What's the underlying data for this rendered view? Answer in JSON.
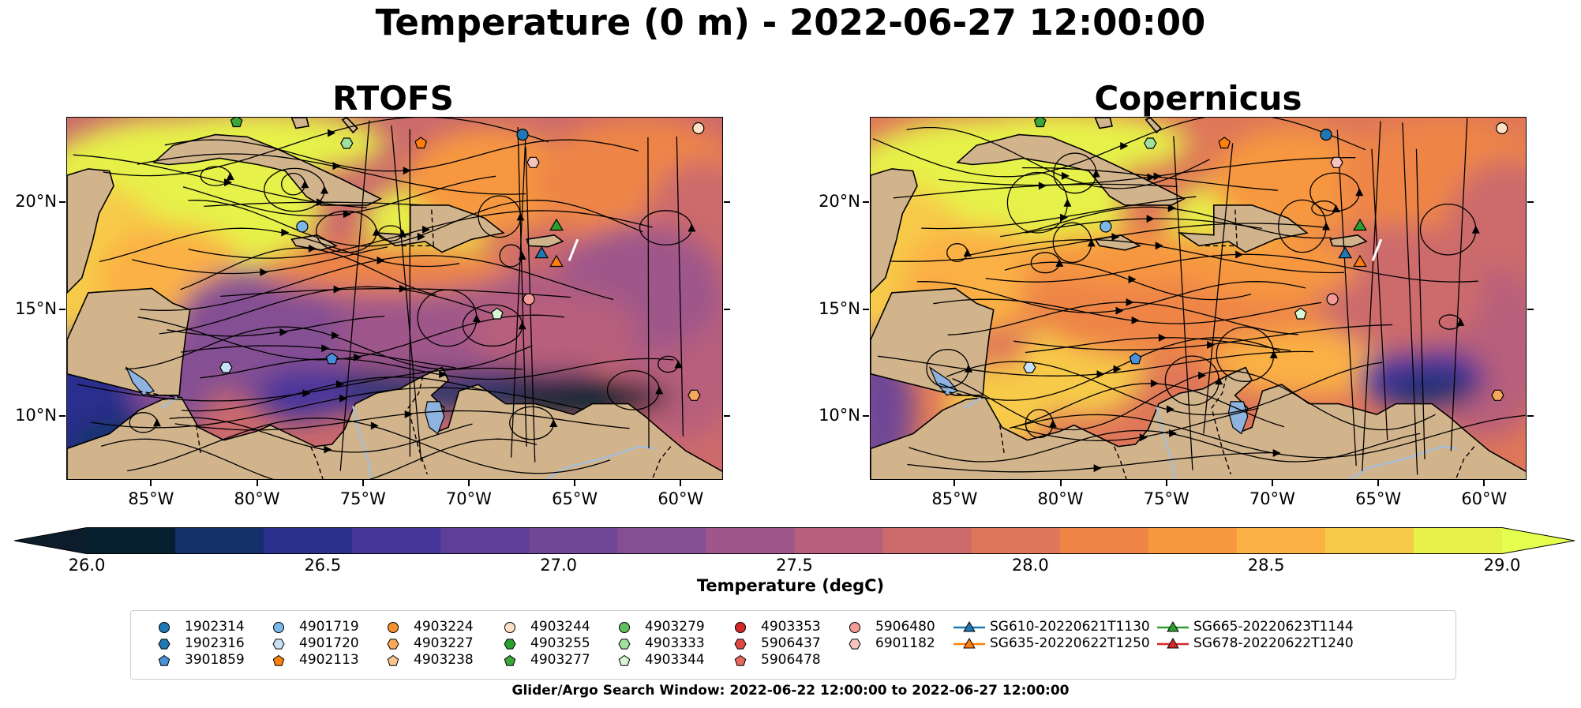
{
  "figure": {
    "title": "Temperature (0 m) - 2022-06-27 12:00:00",
    "footer": "Glider/Argo Search Window: 2022-06-22 12:00:00 to 2022-06-27 12:00:00",
    "colors": {
      "land": "#d2b48c",
      "lake": "#8fb3e0",
      "river": "#a7bcd4",
      "border": "#000000"
    }
  },
  "panels": [
    {
      "title": "RTOFS"
    },
    {
      "title": "Copernicus"
    }
  ],
  "axes": {
    "x_ticks": [
      "85°W",
      "80°W",
      "75°W",
      "70°W",
      "65°W",
      "60°W"
    ],
    "y_ticks": [
      "20°N",
      "15°N",
      "10°N"
    ]
  },
  "chart_data": {
    "type": "heatmap",
    "projection": "map",
    "lon_range": [
      -89,
      -58
    ],
    "lat_range": [
      7,
      24
    ],
    "x_ticks_values": [
      -85,
      -80,
      -75,
      -70,
      -65,
      -60
    ],
    "y_ticks_values": [
      20,
      15,
      10
    ],
    "colorbar": {
      "label": "Temperature (degC)",
      "ticks": [
        26.0,
        26.5,
        27.0,
        27.5,
        28.0,
        28.5,
        29.0
      ],
      "tick_labels": [
        "26.0",
        "26.5",
        "27.0",
        "27.5",
        "28.0",
        "28.5",
        "29.0"
      ],
      "range": [
        26.0,
        29.0
      ],
      "extend": "both",
      "colors": [
        "#06202f",
        "#13306a",
        "#2b2f8e",
        "#47369a",
        "#5d3f99",
        "#6f4796",
        "#854f93",
        "#9f568a",
        "#b75f7c",
        "#cc6a6c",
        "#de7659",
        "#ee8546",
        "#f7983f",
        "#fbb144",
        "#f7ca4a",
        "#e6f24a"
      ],
      "min_color": "#0d1c2a",
      "max_color": "#e4ff4d"
    },
    "observations": [
      {
        "id": "1902314",
        "marker": "circle",
        "color": "#1f77b4",
        "lon": -67.5,
        "lat": 23.2
      },
      {
        "id": "1902316",
        "marker": "hexagon",
        "color": "#1f77b4"
      },
      {
        "id": "3901859",
        "marker": "pentagon",
        "color": "#4a90d9",
        "lon": -76.5,
        "lat": 12.7
      },
      {
        "id": "4901719",
        "marker": "circle",
        "color": "#7ab8e8",
        "lon": -77.9,
        "lat": 18.9
      },
      {
        "id": "4901720",
        "marker": "hexagon",
        "color": "#c6e2f7",
        "lon": -81.5,
        "lat": 12.3
      },
      {
        "id": "4902113",
        "marker": "pentagon",
        "color": "#ff7f0e",
        "lon": -72.3,
        "lat": 22.8
      },
      {
        "id": "4903224",
        "marker": "circle",
        "color": "#f6922e"
      },
      {
        "id": "4903227",
        "marker": "hexagon",
        "color": "#f8a85a",
        "lon": -59.4,
        "lat": 11.0
      },
      {
        "id": "4903238",
        "marker": "pentagon",
        "color": "#fbc58b"
      },
      {
        "id": "4903244",
        "marker": "circle",
        "color": "#fde0c5",
        "lon": -59.2,
        "lat": 23.5
      },
      {
        "id": "4903255",
        "marker": "hexagon",
        "color": "#2ca02c"
      },
      {
        "id": "4903277",
        "marker": "pentagon",
        "color": "#3aa63a",
        "lon": -81.0,
        "lat": 23.8
      },
      {
        "id": "4903279",
        "marker": "circle",
        "color": "#5fc05f"
      },
      {
        "id": "4903333",
        "marker": "hexagon",
        "color": "#9ee29e",
        "lon": -75.8,
        "lat": 22.8
      },
      {
        "id": "4903344",
        "marker": "pentagon",
        "color": "#d7f6d2",
        "lon": -68.7,
        "lat": 14.8
      },
      {
        "id": "4903353",
        "marker": "circle",
        "color": "#d62728"
      },
      {
        "id": "5906437",
        "marker": "hexagon",
        "color": "#e0483f"
      },
      {
        "id": "5906478",
        "marker": "pentagon",
        "color": "#e8685f"
      },
      {
        "id": "5906480",
        "marker": "circle",
        "color": "#f29a95",
        "lon": -67.2,
        "lat": 15.5
      },
      {
        "id": "6901182",
        "marker": "hexagon",
        "color": "#f7c3c0",
        "lon": -67.0,
        "lat": 21.9
      }
    ],
    "gliders": [
      {
        "id": "SG610-20220621T1130",
        "marker": "triangle",
        "color": "#1f77b4",
        "lon": -66.6,
        "lat": 17.6
      },
      {
        "id": "SG635-20220622T1250",
        "marker": "triangle",
        "color": "#ff7f0e",
        "lon": -65.9,
        "lat": 17.2
      },
      {
        "id": "SG665-20220623T1144",
        "marker": "triangle",
        "color": "#2ca02c",
        "lon": -65.9,
        "lat": 18.9
      },
      {
        "id": "SG678-20220622T1240",
        "marker": "triangle",
        "color": "#d62728"
      }
    ]
  }
}
